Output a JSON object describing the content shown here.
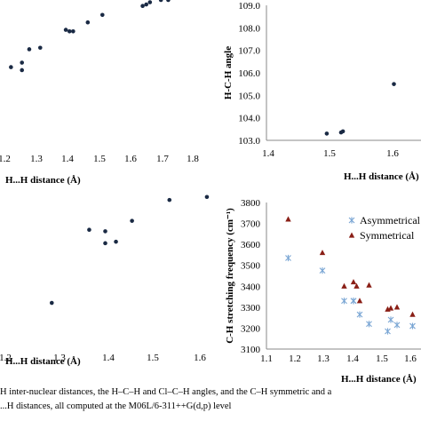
{
  "caption": {
    "line1": "H inter-nuclear distances, the H–C–H and Cl–C–H angles, and the C–H symmetric and a",
    "line2": "...H distances, all computed at the M06L/6-311++G(d,p) level"
  },
  "chart_data": [
    {
      "id": "top-left",
      "type": "scatter",
      "xlabel": "H...H distance (Å)",
      "ylabel": "",
      "xlim": [
        1.15,
        1.83
      ],
      "ylim": [
        0,
        1
      ],
      "xticks": [
        "1.2",
        "1.3",
        "1.4",
        "1.5",
        "1.6",
        "1.7",
        "1.8"
      ],
      "series": [
        {
          "marker": "dot",
          "color": "#1a2a44",
          "x": [
            1.28,
            1.35,
            1.38,
            1.38,
            1.4,
            1.43,
            1.5,
            1.51,
            1.52,
            1.56,
            1.6,
            1.71,
            1.72,
            1.73,
            1.76,
            1.78
          ],
          "y": [
            0.12,
            0.55,
            0.58,
            0.53,
            0.67,
            0.68,
            0.8,
            0.79,
            0.79,
            0.85,
            0.9,
            0.96,
            0.97,
            0.985,
            1.0,
            1.0
          ]
        }
      ]
    },
    {
      "id": "top-right",
      "type": "scatter",
      "xlabel": "H...H distance (Å)",
      "ylabel": "H-C-H  angle",
      "xlim": [
        1.4,
        1.65
      ],
      "ylim": [
        103.0,
        109.0
      ],
      "xticks": [
        "1.4",
        "1.5",
        "1.6"
      ],
      "yticks": [
        "103.0",
        "104.0",
        "105.0",
        "106.0",
        "107.0",
        "108.0",
        "109.0"
      ],
      "series": [
        {
          "marker": "dot",
          "color": "#1a2a44",
          "x": [
            1.497,
            1.52,
            1.523,
            1.605
          ],
          "y": [
            103.3,
            103.35,
            103.4,
            105.5
          ]
        }
      ]
    },
    {
      "id": "bottom-left",
      "type": "scatter",
      "xlabel": "H...H distance (Å)",
      "ylabel": "",
      "xlim": [
        1.15,
        1.6
      ],
      "ylim": [
        0,
        1
      ],
      "xticks": [
        "1.2",
        "1.3",
        "1.4",
        "1.5",
        "1.6"
      ],
      "series": [
        {
          "marker": "dot",
          "color": "#1a2a44",
          "x": [
            1.17,
            1.28,
            1.35,
            1.38,
            1.38,
            1.4,
            1.43,
            1.5,
            1.57
          ],
          "y": [
            0.0,
            0.22,
            0.71,
            0.7,
            0.62,
            0.63,
            0.77,
            0.91,
            0.93
          ]
        }
      ]
    },
    {
      "id": "bottom-right",
      "type": "scatter",
      "xlabel": "H...H distance (Å)",
      "ylabel": "C-H  stretching frequency (cm⁻¹)",
      "xlim": [
        1.1,
        1.6
      ],
      "ylim": [
        3100,
        3800
      ],
      "xticks": [
        "1.1",
        "1.2",
        "1.3",
        "1.4",
        "1.5",
        "1.6"
      ],
      "yticks": [
        "3100",
        "3200",
        "3300",
        "3400",
        "3500",
        "3600",
        "3700",
        "3800"
      ],
      "legend": "top-right",
      "series": [
        {
          "name": "Asymmetrical",
          "marker": "star",
          "color": "#7aa6d4",
          "x": [
            1.17,
            1.28,
            1.35,
            1.38,
            1.38,
            1.4,
            1.43,
            1.49,
            1.5,
            1.52,
            1.57
          ],
          "y": [
            3535,
            3475,
            3330,
            3330,
            3330,
            3265,
            3220,
            3185,
            3240,
            3215,
            3210
          ]
        },
        {
          "name": "Symmetrical",
          "marker": "triangle",
          "color": "#8a1f16",
          "x": [
            1.17,
            1.28,
            1.35,
            1.38,
            1.39,
            1.4,
            1.43,
            1.49,
            1.5,
            1.52,
            1.57
          ],
          "y": [
            3720,
            3560,
            3400,
            3420,
            3400,
            3330,
            3405,
            3290,
            3295,
            3300,
            3265
          ]
        }
      ]
    }
  ]
}
